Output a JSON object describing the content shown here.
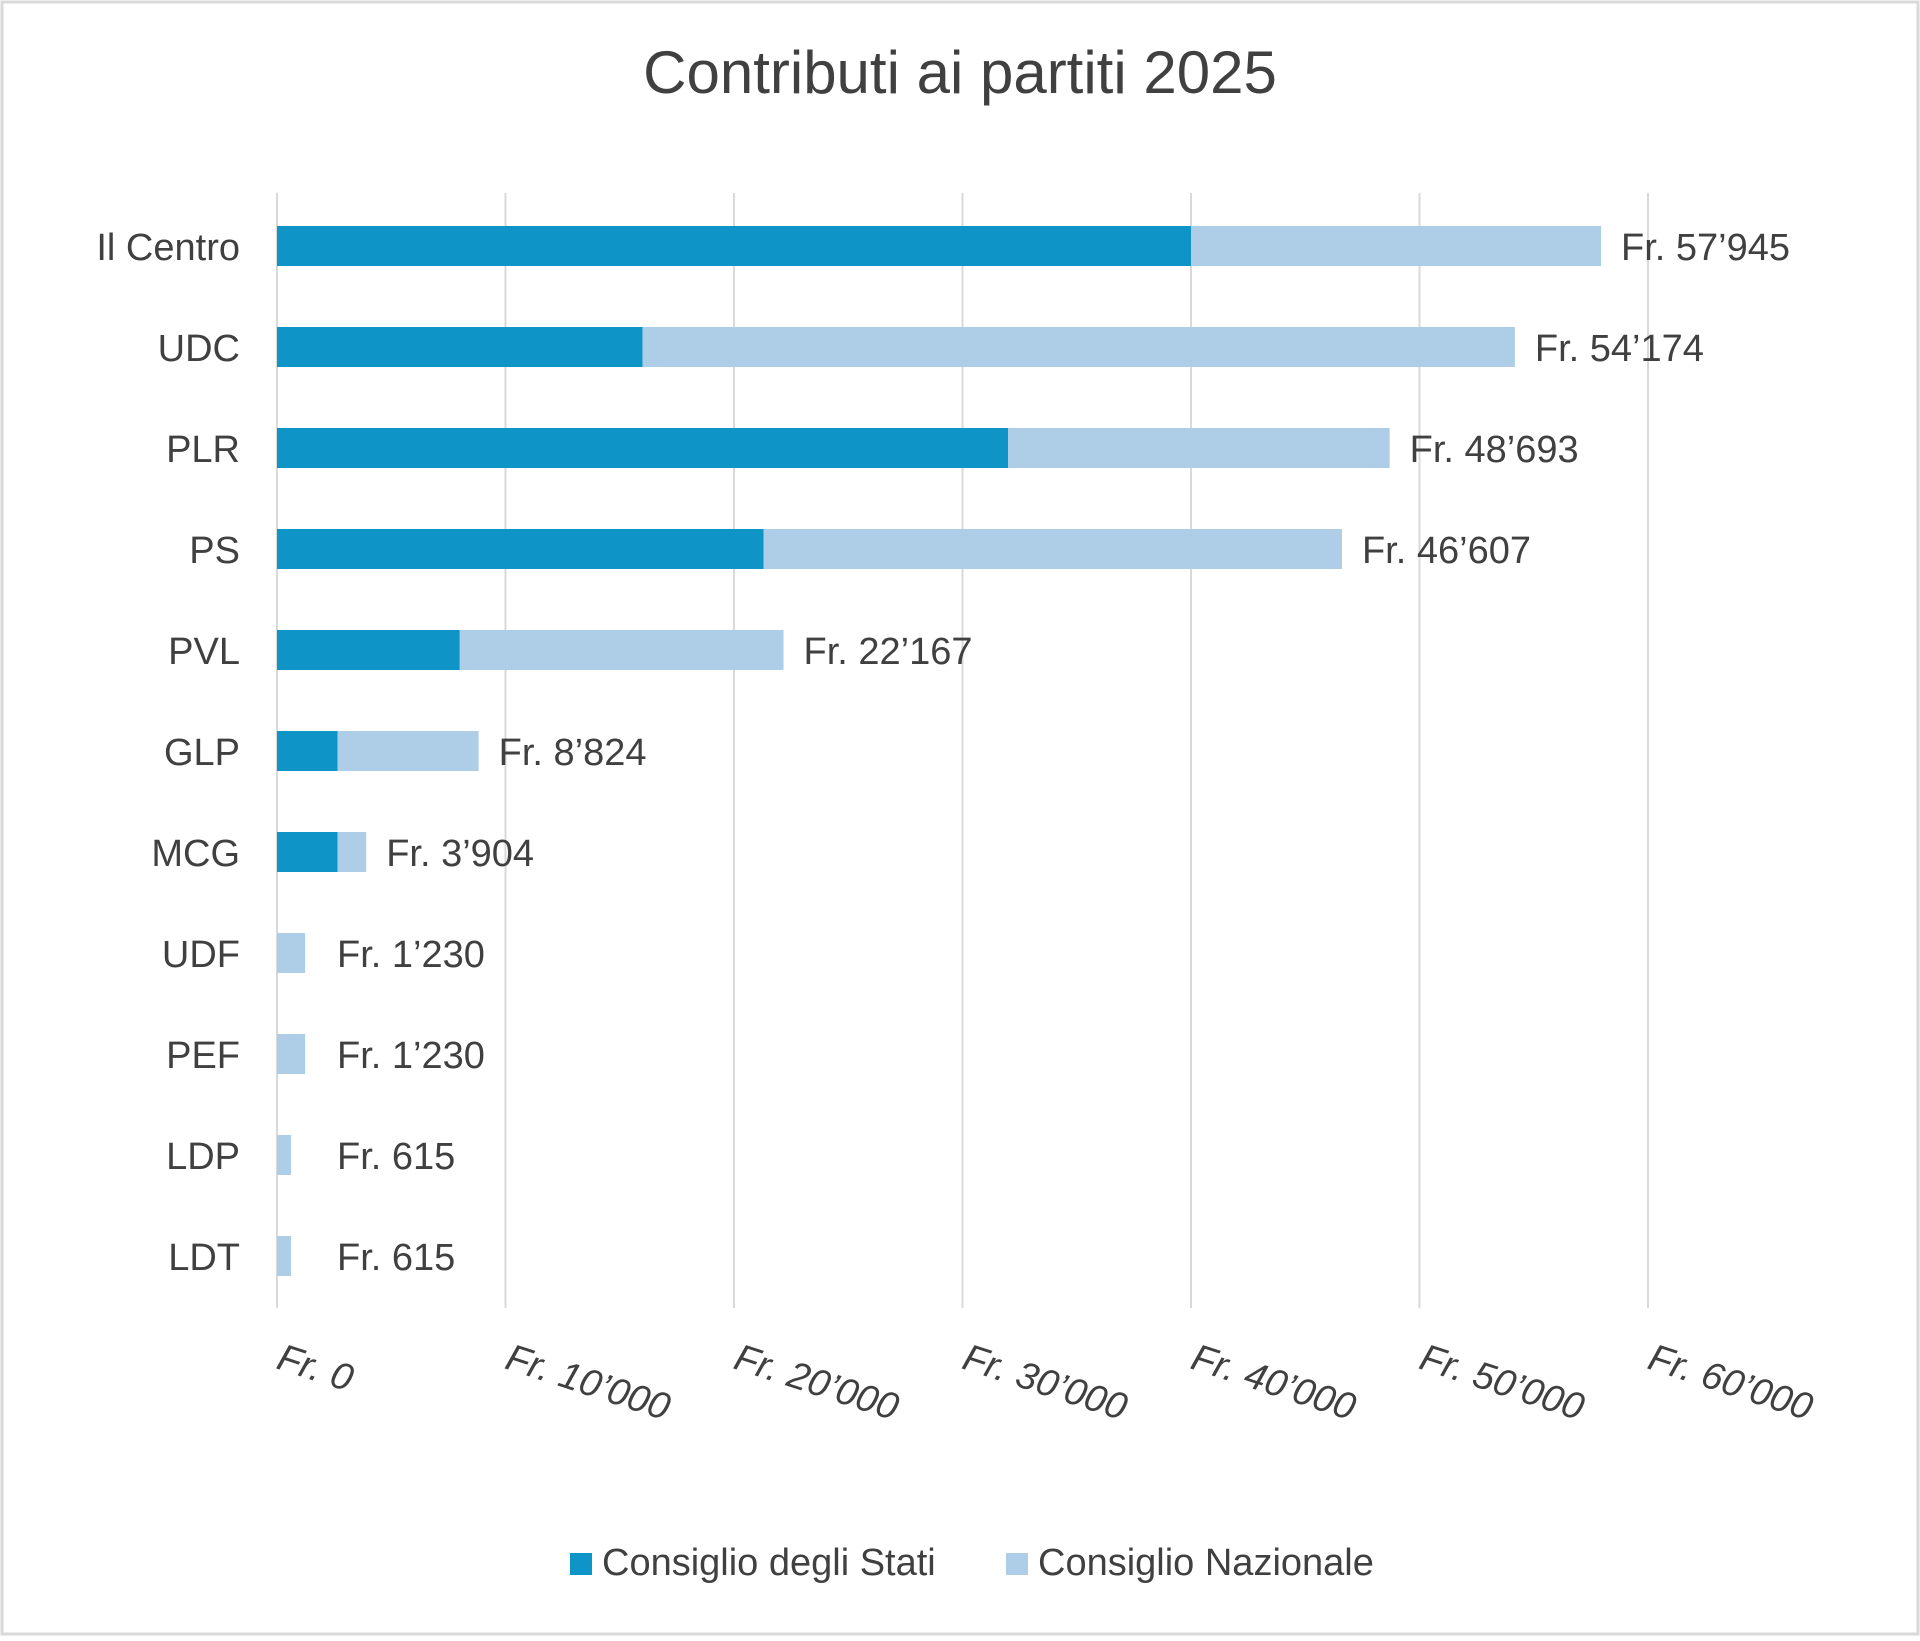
{
  "chart_data": {
    "type": "bar",
    "orientation": "horizontal",
    "stacked": true,
    "title": "Contributi ai partiti 2025",
    "categories": [
      "Il Centro",
      "UDC",
      "PLR",
      "PS",
      "PVL",
      "GLP",
      "MCG",
      "UDF",
      "PEF",
      "LDP",
      "LDT"
    ],
    "series": [
      {
        "name": "Consiglio degli Stati",
        "color": "#0e94c6",
        "values": [
          40000,
          16000,
          32000,
          21300,
          8000,
          2650,
          2650,
          0,
          0,
          0,
          0
        ]
      },
      {
        "name": "Consiglio Nazionale",
        "color": "#aecde6",
        "values": [
          17945,
          38174,
          16693,
          25307,
          14167,
          6174,
          1254,
          1230,
          1230,
          615,
          615
        ]
      }
    ],
    "totals": [
      57945,
      54174,
      48693,
      46607,
      22167,
      8824,
      3904,
      1230,
      1230,
      615,
      615
    ],
    "data_labels": [
      "Fr. 57’945",
      "Fr. 54’174",
      "Fr. 48’693",
      "Fr. 46’607",
      "Fr. 22’167",
      "Fr. 8’824",
      "Fr. 3’904",
      "Fr. 1’230",
      "Fr. 1’230",
      "Fr. 615",
      "Fr. 615"
    ],
    "x_ticks": [
      0,
      10000,
      20000,
      30000,
      40000,
      50000,
      60000
    ],
    "x_tick_labels": [
      "Fr. 0",
      "Fr. 10’000",
      "Fr. 20’000",
      "Fr. 30’000",
      "Fr. 40’000",
      "Fr. 50’000",
      "Fr. 60’000"
    ],
    "xlim": [
      0,
      60000
    ],
    "grid": true,
    "legend_position": "bottom",
    "gridline_color": "#d9d9d9",
    "text_color": "#404040"
  }
}
